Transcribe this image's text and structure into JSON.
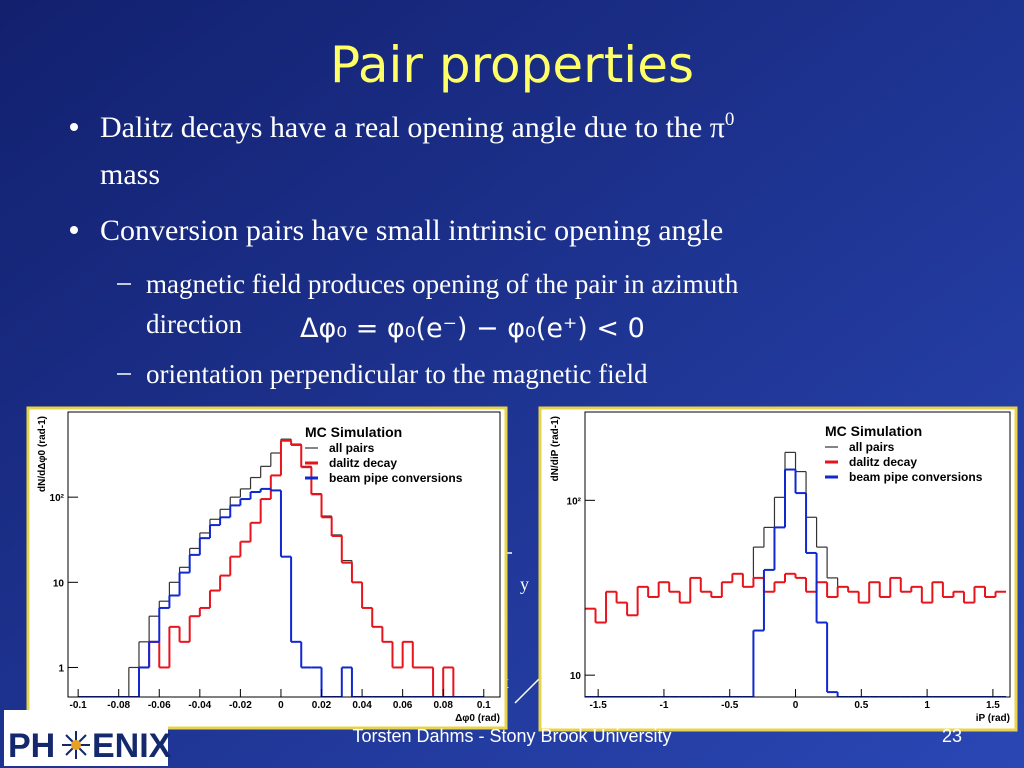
{
  "slide": {
    "title": "Pair properties",
    "bullets": [
      {
        "text": "Dalitz decays have a real opening angle due to the π",
        "sup": "0",
        "cont": "mass"
      },
      {
        "text": "Conversion pairs have small intrinsic opening angle"
      }
    ],
    "sub_bullets": [
      {
        "text": "magnetic field produces opening of the pair in azimuth",
        "cont": "direction"
      },
      {
        "text": "orientation perpendicular to the magnetic field"
      }
    ],
    "equation": "Δφ₀ = φ₀(e⁻) − φ₀(e⁺) < 0",
    "axis_hints": [
      "y",
      "x"
    ],
    "footer": "Torsten Dahms - Stony Brook University",
    "page_number": "23",
    "logo": {
      "left": "PH",
      "right": "ENIX"
    }
  },
  "chart_data": [
    {
      "type": "histogram",
      "title": "MC Simulation",
      "x_label": "Δφ0 (rad)",
      "y_label": "dN/dΔφ0 (rad-1)",
      "log_y": true,
      "grid": false,
      "legend": "upper right",
      "bins": [
        -0.1,
        -0.095,
        -0.09,
        -0.085,
        -0.08,
        -0.075,
        -0.07,
        -0.065,
        -0.06,
        -0.055,
        -0.05,
        -0.045,
        -0.04,
        -0.035,
        -0.03,
        -0.025,
        -0.02,
        -0.015,
        -0.01,
        -0.005,
        0,
        0.005,
        0.01,
        0.015,
        0.02,
        0.025,
        0.03,
        0.035,
        0.04,
        0.045,
        0.05,
        0.055,
        0.06,
        0.065,
        0.07,
        0.075,
        0.08,
        0.085,
        0.09,
        0.095,
        0.1
      ],
      "xlim": [
        -0.105,
        0.108
      ],
      "ylim": [
        0.45,
        1000
      ],
      "xticks": [
        -0.1,
        -0.08,
        -0.06,
        -0.04,
        -0.02,
        0,
        0.02,
        0.04,
        0.06,
        0.08,
        0.1
      ],
      "yticks": [
        1,
        10,
        {
          "value": 100,
          "label": "10²"
        }
      ],
      "series": [
        {
          "name": "all pairs",
          "color": "#333333",
          "values": [
            0,
            0,
            0,
            0,
            0,
            1,
            2,
            4,
            6,
            10,
            15,
            25,
            38,
            55,
            72,
            100,
            125,
            170,
            230,
            330,
            480,
            420,
            230,
            110,
            60,
            36,
            18,
            10,
            5,
            3,
            2,
            1,
            2,
            1,
            1,
            0,
            1,
            0,
            0,
            0
          ]
        },
        {
          "name": "dalitz decay",
          "color": "#e8141c",
          "values": [
            0,
            0,
            0,
            0,
            0,
            0,
            1,
            2,
            1,
            3,
            2,
            4,
            5,
            8,
            12,
            20,
            30,
            50,
            95,
            180,
            460,
            410,
            225,
            108,
            58,
            35,
            17,
            10,
            5,
            3,
            2,
            1,
            2,
            1,
            1,
            0,
            1,
            0,
            0,
            0
          ]
        },
        {
          "name": "beam pipe conversions",
          "color": "#1028d0",
          "values": [
            0,
            0,
            0,
            0,
            0,
            0,
            1,
            2,
            5,
            7,
            13,
            21,
            33,
            47,
            58,
            80,
            95,
            115,
            125,
            120,
            20,
            2,
            1,
            1,
            0,
            0,
            1,
            0,
            0,
            0,
            0,
            0,
            0,
            0,
            0,
            0,
            0,
            0,
            0,
            0
          ]
        }
      ]
    },
    {
      "type": "histogram",
      "title": "MC Simulation",
      "x_label": "iP (rad)",
      "y_label": "dN/diP (rad-1)",
      "log_y": true,
      "grid": false,
      "legend": "upper right",
      "bins": [
        -1.6,
        -1.52,
        -1.44,
        -1.36,
        -1.28,
        -1.2,
        -1.12,
        -1.04,
        -0.96,
        -0.88,
        -0.8,
        -0.72,
        -0.64,
        -0.56,
        -0.48,
        -0.4,
        -0.32,
        -0.24,
        -0.16,
        -0.08,
        0,
        0.08,
        0.16,
        0.24,
        0.32,
        0.4,
        0.48,
        0.56,
        0.64,
        0.72,
        0.8,
        0.88,
        0.96,
        1.04,
        1.12,
        1.2,
        1.28,
        1.36,
        1.44,
        1.52,
        1.6
      ],
      "xlim": [
        -1.6,
        1.63
      ],
      "ylim": [
        7.5,
        320
      ],
      "xticks": [
        -1.5,
        -1,
        -0.5,
        0,
        0.5,
        1,
        1.5
      ],
      "yticks": [
        10,
        {
          "value": 100,
          "label": "10²"
        }
      ],
      "series": [
        {
          "name": "all pairs",
          "color": "#333333",
          "values": [
            24,
            20,
            30,
            26,
            22,
            32,
            28,
            34,
            30,
            26,
            36,
            30,
            28,
            34,
            38,
            32,
            54,
            70,
            104,
            188,
            146,
            80,
            54,
            36,
            32,
            30,
            26,
            34,
            28,
            36,
            30,
            32,
            26,
            34,
            28,
            30,
            26,
            32,
            28,
            30
          ]
        },
        {
          "name": "dalitz decay",
          "color": "#e8141c",
          "values": [
            24,
            20,
            30,
            26,
            22,
            32,
            28,
            34,
            30,
            26,
            36,
            30,
            28,
            34,
            38,
            32,
            36,
            30,
            34,
            38,
            36,
            30,
            34,
            28,
            32,
            30,
            26,
            34,
            28,
            36,
            30,
            32,
            26,
            34,
            28,
            30,
            26,
            32,
            28,
            30
          ]
        },
        {
          "name": "beam pipe conversions",
          "color": "#1028d0",
          "values": [
            0,
            0,
            0,
            0,
            0,
            0,
            0,
            0,
            0,
            0,
            0,
            0,
            0,
            0,
            0,
            0,
            18,
            40,
            70,
            150,
            110,
            50,
            20,
            8,
            0,
            0,
            0,
            0,
            0,
            0,
            0,
            0,
            0,
            0,
            0,
            0,
            0,
            0,
            0,
            0
          ]
        }
      ]
    }
  ]
}
